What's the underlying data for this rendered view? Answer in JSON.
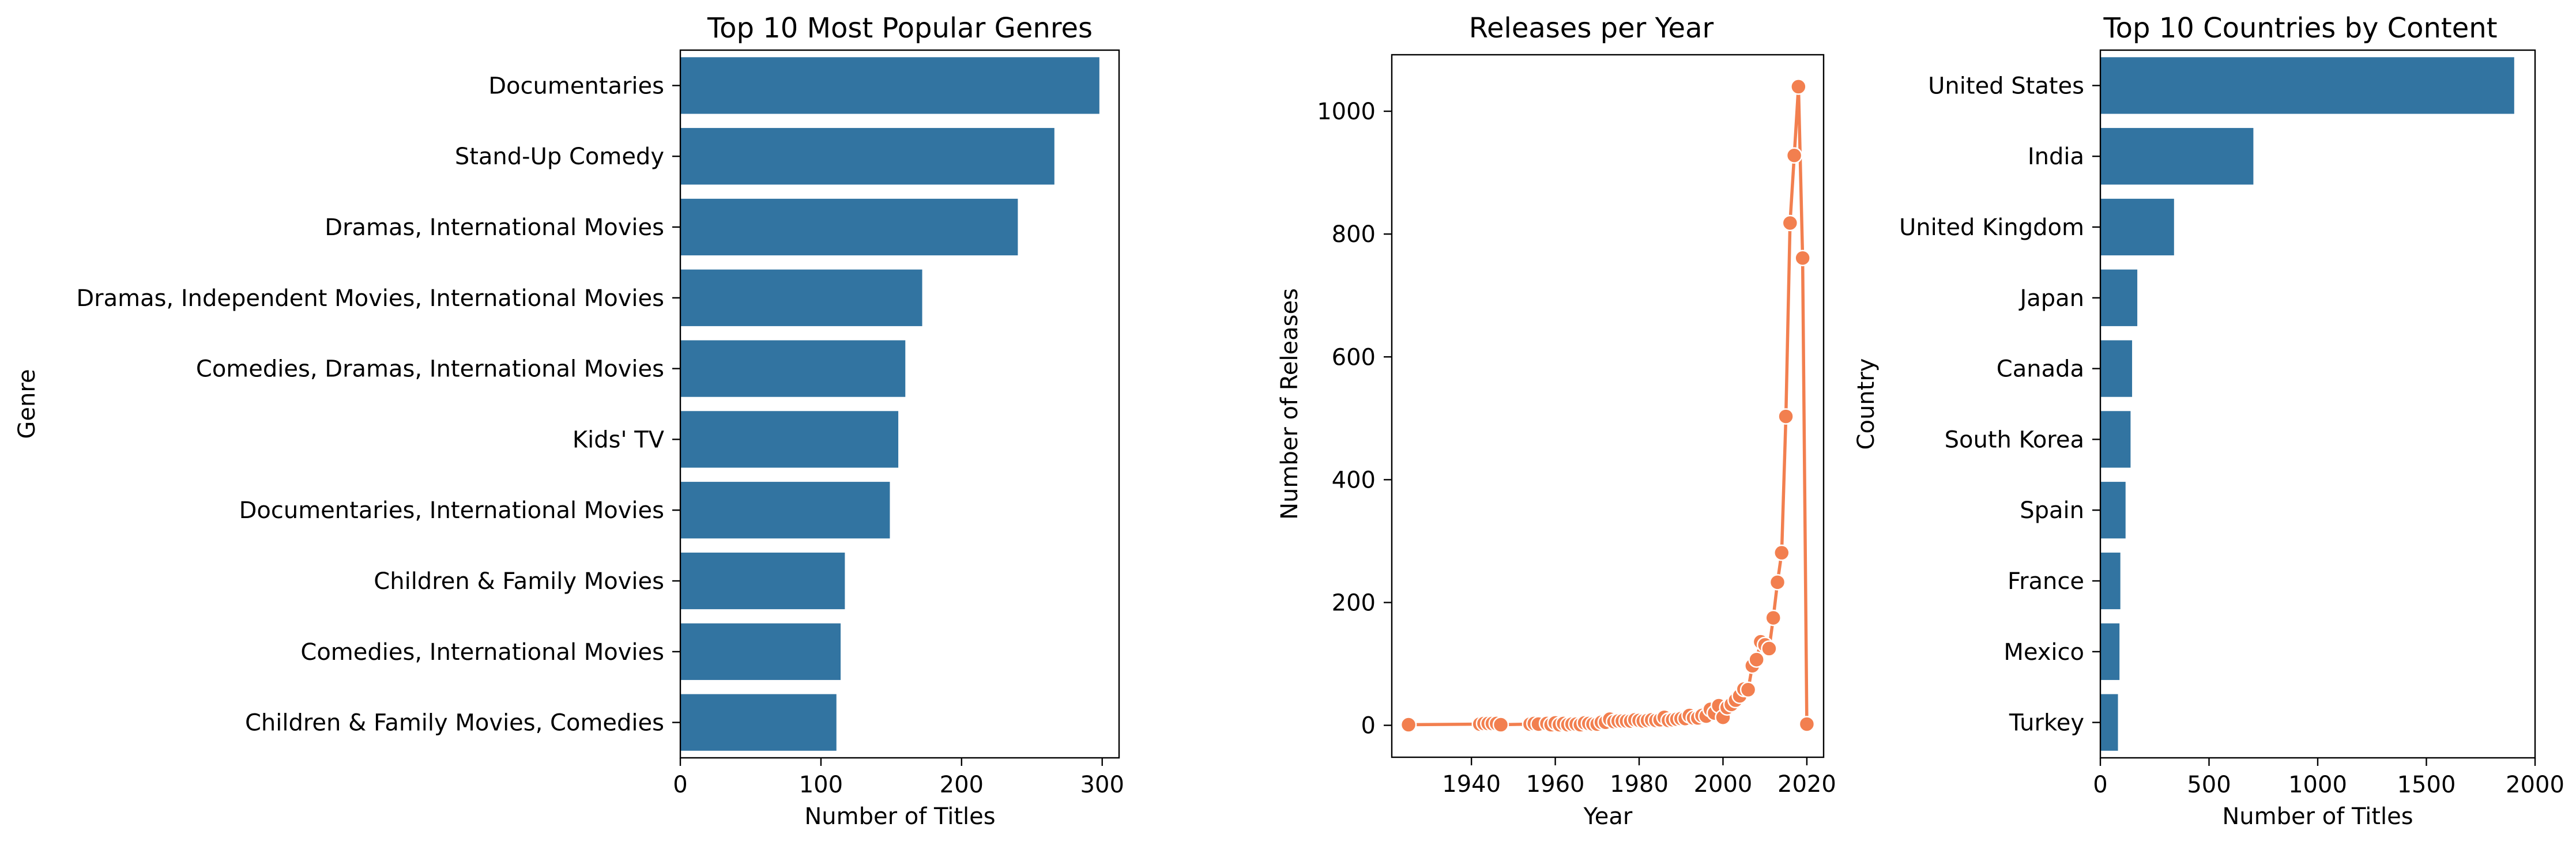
{
  "chart_data": [
    {
      "type": "bar",
      "orientation": "horizontal",
      "title": "Top 10 Most Popular Genres",
      "xlabel": "Number of Titles",
      "ylabel": "Genre",
      "categories": [
        "Documentaries",
        "Stand-Up Comedy",
        "Dramas, International Movies",
        "Dramas, Independent Movies, International Movies",
        "Comedies, Dramas, International Movies",
        "Kids' TV",
        "Documentaries, International Movies",
        "Children & Family Movies",
        "Comedies, International Movies",
        "Children & Family Movies, Comedies"
      ],
      "values": [
        298,
        266,
        240,
        172,
        160,
        155,
        149,
        117,
        114,
        111
      ],
      "xlim": [
        0,
        312
      ],
      "xticks": [
        0,
        100,
        200,
        300
      ],
      "color": "#3274a1",
      "grid": false
    },
    {
      "type": "line",
      "title": "Releases per Year",
      "xlabel": "Year",
      "ylabel": "Number of Releases",
      "x": [
        1925,
        1942,
        1943,
        1944,
        1945,
        1946,
        1947,
        1954,
        1955,
        1956,
        1958,
        1959,
        1960,
        1961,
        1962,
        1963,
        1964,
        1965,
        1966,
        1967,
        1968,
        1969,
        1970,
        1971,
        1972,
        1973,
        1974,
        1975,
        1976,
        1977,
        1978,
        1979,
        1980,
        1981,
        1982,
        1983,
        1984,
        1985,
        1986,
        1987,
        1988,
        1989,
        1990,
        1991,
        1992,
        1993,
        1994,
        1995,
        1996,
        1997,
        1998,
        1999,
        2000,
        2001,
        2002,
        2003,
        2004,
        2005,
        2006,
        2007,
        2008,
        2009,
        2010,
        2011,
        2012,
        2013,
        2014,
        2015,
        2016,
        2017,
        2018,
        2019,
        2020
      ],
      "y": [
        1,
        2,
        3,
        3,
        3,
        3,
        1,
        2,
        3,
        2,
        3,
        1,
        4,
        1,
        3,
        1,
        2,
        2,
        1,
        4,
        3,
        2,
        2,
        5,
        5,
        10,
        6,
        7,
        7,
        7,
        7,
        9,
        8,
        7,
        8,
        9,
        8,
        9,
        13,
        8,
        9,
        10,
        11,
        11,
        16,
        12,
        12,
        16,
        15,
        26,
        20,
        32,
        13,
        29,
        34,
        41,
        48,
        59,
        58,
        97,
        107,
        136,
        131,
        125,
        175,
        233,
        281,
        503,
        818,
        928,
        1040,
        761,
        2
      ],
      "xlim": [
        1921,
        2024
      ],
      "ylim": [
        -52,
        1092
      ],
      "xticks": [
        1940,
        1960,
        1980,
        2000,
        2020
      ],
      "yticks": [
        0,
        200,
        400,
        600,
        800,
        1000
      ],
      "color": "#f27f4f",
      "marker": "circle",
      "grid": false
    },
    {
      "type": "bar",
      "orientation": "horizontal",
      "title": "Top 10 Countries by Content",
      "xlabel": "Number of Titles",
      "ylabel": "Country",
      "categories": [
        "United States",
        "India",
        "United Kingdom",
        "Japan",
        "Canada",
        "South Korea",
        "Spain",
        "France",
        "Mexico",
        "Turkey"
      ],
      "values": [
        1904,
        704,
        339,
        170,
        146,
        139,
        116,
        92,
        88,
        81
      ],
      "xlim": [
        0,
        2000
      ],
      "xticks": [
        0,
        500,
        1000,
        1500,
        2000
      ],
      "color": "#3274a1",
      "grid": false
    }
  ]
}
